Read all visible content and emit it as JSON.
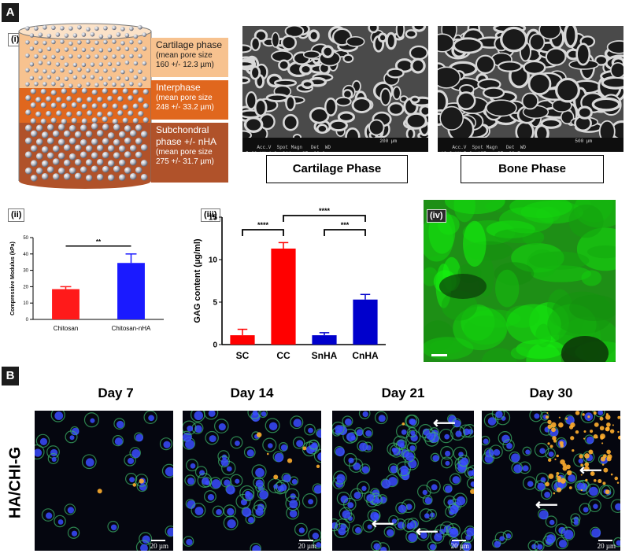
{
  "panels": {
    "a_letter": "A",
    "b_letter": "B"
  },
  "schematic": {
    "tag": "(i)",
    "phases": [
      {
        "title": "Cartilage phase",
        "detail": [
          "(mean pore size",
          "160 +/- 12.3 µm)"
        ],
        "color": "#f7c28f"
      },
      {
        "title": "Interphase",
        "detail": [
          "(mean pore size",
          "248 +/- 33.2 µm)"
        ],
        "color": "#e0671e"
      },
      {
        "title": "Subchondral",
        "detail": [
          "phase +/- nHA",
          "(mean pore size",
          "275 +/- 31.7 µm)"
        ],
        "color": "#b0522a"
      }
    ]
  },
  "sem": {
    "cartilage": {
      "caption": "Cartilage Phase",
      "bar_text": "Acc.V  Spot Magn   Det  WD\n5.00 kV 4.0  214x   SE  26.3",
      "scale": "200 µm"
    },
    "bone": {
      "caption": "Bone Phase",
      "bar_text": "Acc.V  Spot Magn   Det  WD\n10.0 kV 5.0  127x   SE  20.7",
      "scale": "500 µm"
    }
  },
  "fig_ii": {
    "tag": "(ii)"
  },
  "fig_iii": {
    "tag": "(iii)"
  },
  "fig_iv": {
    "tag": "(iv)"
  },
  "chart_data": [
    {
      "type": "bar",
      "categories": [
        "Chitosan",
        "Chitosan-nHA"
      ],
      "values": [
        18.5,
        34.5
      ],
      "errors": [
        1.5,
        5.5
      ],
      "colors": [
        "#ff1a1a",
        "#1a1aff"
      ],
      "ylabel": "Compressive Modulus (kPa)",
      "ylim": [
        0,
        50
      ],
      "yticks": [
        0,
        10,
        20,
        30,
        40,
        50
      ],
      "significance": [
        {
          "from": 0,
          "to": 1,
          "label": "**"
        }
      ]
    },
    {
      "type": "bar",
      "categories": [
        "SC",
        "CC",
        "SnHA",
        "CnHA"
      ],
      "values": [
        1.1,
        11.3,
        1.1,
        5.3
      ],
      "errors": [
        0.7,
        0.7,
        0.3,
        0.6
      ],
      "colors": [
        "#ff0000",
        "#ff0000",
        "#0000cc",
        "#0000cc"
      ],
      "ylabel": "GAG content (µg/ml)",
      "ylim": [
        0,
        15
      ],
      "yticks": [
        0,
        5,
        10,
        15
      ],
      "significance": [
        {
          "from": 0,
          "to": 1,
          "label": "****"
        },
        {
          "from": 1,
          "to": 3,
          "label": "****"
        },
        {
          "from": 2,
          "to": 3,
          "label": "***"
        }
      ]
    }
  ],
  "confocal": {
    "row_label": "HA/CHI-G",
    "days": [
      {
        "label": "Day 7",
        "scale": "20 µm"
      },
      {
        "label": "Day 14",
        "scale": "20 µm"
      },
      {
        "label": "Day 21",
        "scale": "20 µm"
      },
      {
        "label": "Day 30",
        "scale": "20 µm"
      }
    ]
  }
}
